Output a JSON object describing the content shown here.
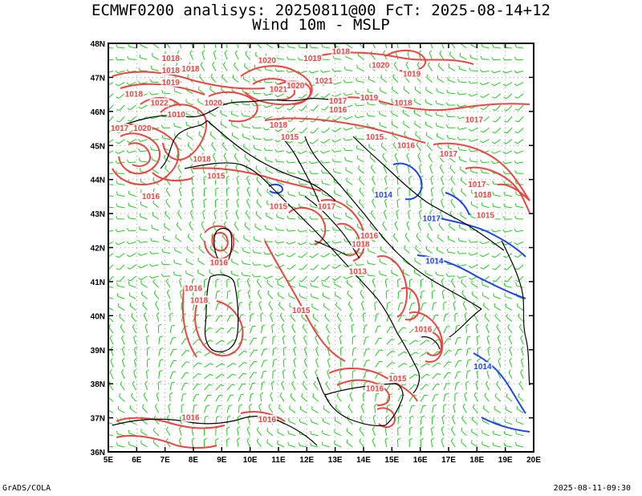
{
  "header": {
    "title_line1": "ECMWF0200 analisys: 20250811@00 FcT: 2025-08-14+12",
    "title_line2": "Wind 10m - MSLP"
  },
  "footer": {
    "left": "GrADS/COLA",
    "right": "2025-08-11-09:30"
  },
  "map": {
    "lon_labels": [
      "5E",
      "6E",
      "7E",
      "8E",
      "9E",
      "10E",
      "11E",
      "12E",
      "13E",
      "14E",
      "15E",
      "16E",
      "17E",
      "18E",
      "19E",
      "20E"
    ],
    "lat_labels": [
      "48N",
      "47N",
      "46N",
      "45N",
      "44N",
      "43N",
      "42N",
      "41N",
      "40N",
      "39N",
      "38N",
      "37N",
      "36N"
    ],
    "lon_range": [
      5,
      20
    ],
    "lat_range": [
      36,
      48
    ],
    "colors": {
      "wind": "#22cc22",
      "isobar_high": "#ee4444",
      "isobar_low": "#2244ee",
      "coast": "#000000"
    },
    "pressure_labels": [
      {
        "text": "1018",
        "lon": 7.2,
        "lat": 47.5,
        "c": "red"
      },
      {
        "text": "1018",
        "lon": 7.2,
        "lat": 47.15,
        "c": "red"
      },
      {
        "text": "1019",
        "lon": 7.2,
        "lat": 46.8,
        "c": "red"
      },
      {
        "text": "1018",
        "lon": 7.9,
        "lat": 47.2,
        "c": "red"
      },
      {
        "text": "1020",
        "lon": 10.6,
        "lat": 47.45,
        "c": "red"
      },
      {
        "text": "1019",
        "lon": 12.2,
        "lat": 47.5,
        "c": "red"
      },
      {
        "text": "1018",
        "lon": 13.2,
        "lat": 47.7,
        "c": "red"
      },
      {
        "text": "1020",
        "lon": 14.6,
        "lat": 47.3,
        "c": "red"
      },
      {
        "text": "1019",
        "lon": 15.7,
        "lat": 47.05,
        "c": "red"
      },
      {
        "text": "1021",
        "lon": 11.0,
        "lat": 46.6,
        "c": "red"
      },
      {
        "text": "1020",
        "lon": 11.6,
        "lat": 46.7,
        "c": "red"
      },
      {
        "text": "1021",
        "lon": 12.6,
        "lat": 46.85,
        "c": "red"
      },
      {
        "text": "1018",
        "lon": 5.9,
        "lat": 46.45,
        "c": "red"
      },
      {
        "text": "1022",
        "lon": 6.8,
        "lat": 46.2,
        "c": "red"
      },
      {
        "text": "1020",
        "lon": 8.7,
        "lat": 46.2,
        "c": "red"
      },
      {
        "text": "1010",
        "lon": 7.4,
        "lat": 45.85,
        "c": "red"
      },
      {
        "text": "1017",
        "lon": 13.1,
        "lat": 46.25,
        "c": "red"
      },
      {
        "text": "1016",
        "lon": 13.1,
        "lat": 46.0,
        "c": "red"
      },
      {
        "text": "1019",
        "lon": 14.2,
        "lat": 46.35,
        "c": "red"
      },
      {
        "text": "1018",
        "lon": 15.4,
        "lat": 46.2,
        "c": "red"
      },
      {
        "text": "1017",
        "lon": 5.4,
        "lat": 45.45,
        "c": "red"
      },
      {
        "text": "1020",
        "lon": 6.2,
        "lat": 45.45,
        "c": "red"
      },
      {
        "text": "1018",
        "lon": 11.0,
        "lat": 45.55,
        "c": "red"
      },
      {
        "text": "1015",
        "lon": 11.4,
        "lat": 45.2,
        "c": "red"
      },
      {
        "text": "1015",
        "lon": 14.4,
        "lat": 45.2,
        "c": "red"
      },
      {
        "text": "1016",
        "lon": 15.5,
        "lat": 44.95,
        "c": "red"
      },
      {
        "text": "1017",
        "lon": 17.9,
        "lat": 45.7,
        "c": "red"
      },
      {
        "text": "1017",
        "lon": 17.0,
        "lat": 44.7,
        "c": "red"
      },
      {
        "text": "1018",
        "lon": 8.3,
        "lat": 44.55,
        "c": "red"
      },
      {
        "text": "1015",
        "lon": 8.8,
        "lat": 44.05,
        "c": "red"
      },
      {
        "text": "1016",
        "lon": 6.5,
        "lat": 43.45,
        "c": "red"
      },
      {
        "text": "1017",
        "lon": 18.0,
        "lat": 43.8,
        "c": "red"
      },
      {
        "text": "1018",
        "lon": 18.2,
        "lat": 43.5,
        "c": "red"
      },
      {
        "text": "1015",
        "lon": 18.3,
        "lat": 42.9,
        "c": "red"
      },
      {
        "text": "1015",
        "lon": 11.0,
        "lat": 43.15,
        "c": "red"
      },
      {
        "text": "1017",
        "lon": 12.7,
        "lat": 43.15,
        "c": "red"
      },
      {
        "text": "1016",
        "lon": 14.2,
        "lat": 42.3,
        "c": "red"
      },
      {
        "text": "1018",
        "lon": 13.9,
        "lat": 42.05,
        "c": "red"
      },
      {
        "text": "1016",
        "lon": 8.9,
        "lat": 41.5,
        "c": "red"
      },
      {
        "text": "1013",
        "lon": 13.8,
        "lat": 41.25,
        "c": "red"
      },
      {
        "text": "1016",
        "lon": 8.0,
        "lat": 40.75,
        "c": "red"
      },
      {
        "text": "1018",
        "lon": 8.2,
        "lat": 40.4,
        "c": "red"
      },
      {
        "text": "1015",
        "lon": 11.8,
        "lat": 40.1,
        "c": "red"
      },
      {
        "text": "1016",
        "lon": 16.1,
        "lat": 39.55,
        "c": "red"
      },
      {
        "text": "1015",
        "lon": 15.2,
        "lat": 38.1,
        "c": "red"
      },
      {
        "text": "1016",
        "lon": 14.4,
        "lat": 37.8,
        "c": "red"
      },
      {
        "text": "1016",
        "lon": 7.9,
        "lat": 36.95,
        "c": "red"
      },
      {
        "text": "1016",
        "lon": 10.6,
        "lat": 36.9,
        "c": "red"
      },
      {
        "text": "1014",
        "lon": 14.7,
        "lat": 43.5,
        "c": "blue"
      },
      {
        "text": "1014",
        "lon": 16.5,
        "lat": 41.55,
        "c": "blue"
      },
      {
        "text": "1014",
        "lon": 18.2,
        "lat": 38.45,
        "c": "blue"
      },
      {
        "text": "1017",
        "lon": 16.4,
        "lat": 42.8,
        "c": "blue"
      }
    ]
  }
}
